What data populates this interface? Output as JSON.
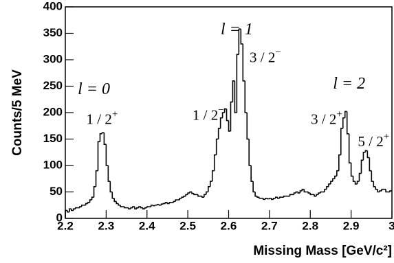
{
  "chart_data": {
    "type": "histogram",
    "xlabel": "Missing Mass [GeV/c²]",
    "ylabel": "Counts/5 MeV",
    "xlim": [
      2.2,
      3
    ],
    "ylim": [
      0,
      400
    ],
    "xticks": [
      2.2,
      2.3,
      2.4,
      2.5,
      2.6,
      2.7,
      2.8,
      2.9,
      3
    ],
    "yticks": [
      0,
      50,
      100,
      150,
      200,
      250,
      300,
      350,
      400
    ],
    "color": "#000000",
    "bins": [
      2.2,
      2.205,
      2.21,
      2.215,
      2.22,
      2.225,
      2.23,
      2.235,
      2.24,
      2.245,
      2.25,
      2.255,
      2.26,
      2.265,
      2.27,
      2.275,
      2.28,
      2.285,
      2.29,
      2.295,
      2.3,
      2.305,
      2.31,
      2.315,
      2.32,
      2.325,
      2.33,
      2.335,
      2.34,
      2.345,
      2.35,
      2.355,
      2.36,
      2.365,
      2.37,
      2.375,
      2.38,
      2.385,
      2.39,
      2.395,
      2.4,
      2.405,
      2.41,
      2.415,
      2.42,
      2.425,
      2.43,
      2.435,
      2.44,
      2.445,
      2.45,
      2.455,
      2.46,
      2.465,
      2.47,
      2.475,
      2.48,
      2.485,
      2.49,
      2.495,
      2.5,
      2.505,
      2.51,
      2.515,
      2.52,
      2.525,
      2.53,
      2.535,
      2.54,
      2.545,
      2.55,
      2.555,
      2.56,
      2.565,
      2.57,
      2.575,
      2.58,
      2.585,
      2.59,
      2.595,
      2.6,
      2.605,
      2.61,
      2.615,
      2.62,
      2.625,
      2.63,
      2.635,
      2.64,
      2.645,
      2.65,
      2.655,
      2.66,
      2.665,
      2.67,
      2.675,
      2.68,
      2.685,
      2.69,
      2.695,
      2.7,
      2.705,
      2.71,
      2.715,
      2.72,
      2.725,
      2.73,
      2.735,
      2.74,
      2.745,
      2.75,
      2.755,
      2.76,
      2.765,
      2.77,
      2.775,
      2.78,
      2.785,
      2.79,
      2.795,
      2.8,
      2.805,
      2.81,
      2.815,
      2.82,
      2.825,
      2.83,
      2.835,
      2.84,
      2.845,
      2.85,
      2.855,
      2.86,
      2.865,
      2.87,
      2.875,
      2.88,
      2.885,
      2.89,
      2.895,
      2.9,
      2.905,
      2.91,
      2.915,
      2.92,
      2.925,
      2.93,
      2.935,
      2.94,
      2.945,
      2.95,
      2.955,
      2.96,
      2.965,
      2.97,
      2.975,
      2.98,
      2.985,
      2.99,
      2.995,
      3
    ],
    "counts": [
      15,
      12,
      18,
      15,
      18,
      20,
      20,
      22,
      25,
      25,
      28,
      30,
      35,
      40,
      60,
      90,
      145,
      160,
      162,
      140,
      100,
      70,
      50,
      38,
      32,
      28,
      25,
      22,
      22,
      20,
      20,
      18,
      20,
      22,
      18,
      20,
      22,
      20,
      18,
      20,
      22,
      22,
      25,
      24,
      25,
      26,
      25,
      27,
      28,
      30,
      28,
      30,
      30,
      32,
      35,
      35,
      38,
      40,
      42,
      45,
      48,
      50,
      47,
      45,
      45,
      42,
      42,
      40,
      45,
      50,
      60,
      70,
      90,
      120,
      150,
      170,
      190,
      200,
      207,
      185,
      165,
      220,
      260,
      200,
      310,
      358,
      330,
      260,
      200,
      150,
      100,
      70,
      50,
      42,
      40,
      38,
      38,
      36,
      38,
      37,
      38,
      36,
      38,
      40,
      38,
      40,
      40,
      42,
      42,
      42,
      45,
      45,
      48,
      50,
      48,
      52,
      55,
      50,
      50,
      48,
      45,
      45,
      42,
      45,
      48,
      50,
      50,
      55,
      60,
      65,
      70,
      75,
      80,
      90,
      120,
      170,
      190,
      202,
      160,
      105,
      80,
      70,
      65,
      70,
      85,
      110,
      125,
      128,
      115,
      90,
      70,
      60,
      55,
      50,
      52,
      55,
      55,
      50,
      50,
      52
    ],
    "annotations": [
      {
        "text": "l = 0",
        "x": 2.27,
        "y": 243
      },
      {
        "text": "1 / 2",
        "sup": "+",
        "x": 2.29,
        "y": 185
      },
      {
        "text": "l = 1",
        "x": 2.62,
        "y": 356
      },
      {
        "text": "3 / 2",
        "sup": "−",
        "x": 2.69,
        "y": 302
      },
      {
        "text": "1 / 2",
        "sup": "−",
        "x": 2.55,
        "y": 193
      },
      {
        "text": "l = 2",
        "x": 2.895,
        "y": 253
      },
      {
        "text": "3 / 2",
        "sup": "+",
        "x": 2.84,
        "y": 185
      },
      {
        "text": "5 / 2",
        "sup": "+",
        "x": 2.955,
        "y": 143
      }
    ]
  }
}
